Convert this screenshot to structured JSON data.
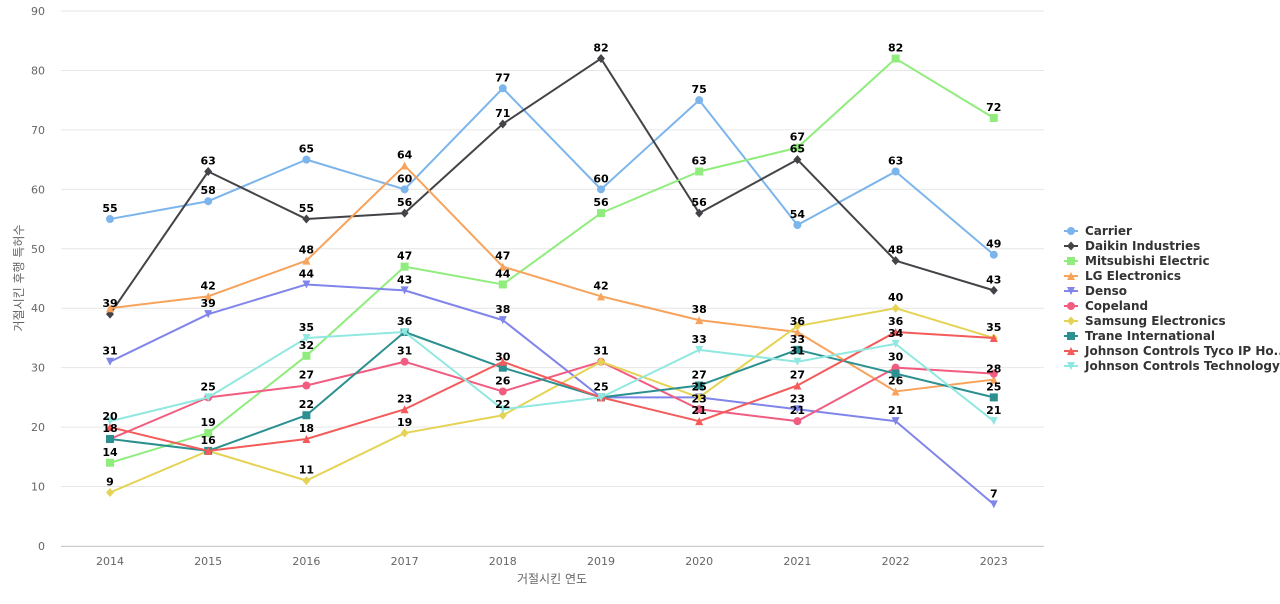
{
  "chart_data": {
    "type": "line",
    "title": "",
    "xlabel": "거절시킨 연도",
    "ylabel": "거절시킨 후행 특허수",
    "categories": [
      "2014",
      "2015",
      "2016",
      "2017",
      "2018",
      "2019",
      "2020",
      "2021",
      "2022",
      "2023"
    ],
    "ylim": [
      0,
      90
    ],
    "yticks": [
      0,
      10,
      20,
      30,
      40,
      50,
      60,
      70,
      80,
      90
    ],
    "grid": true,
    "legend_position": "right",
    "series": [
      {
        "name": "Carrier",
        "color": "#7cb5ec",
        "marker": "circle",
        "values": [
          55,
          58,
          65,
          60,
          77,
          60,
          75,
          54,
          63,
          49
        ]
      },
      {
        "name": "Daikin Industries",
        "color": "#434348",
        "marker": "diamond",
        "values": [
          39,
          63,
          55,
          56,
          71,
          82,
          56,
          65,
          48,
          43
        ]
      },
      {
        "name": "Mitsubishi Electric",
        "color": "#90ed7d",
        "marker": "square",
        "values": [
          14,
          19,
          32,
          47,
          44,
          56,
          63,
          67,
          82,
          72
        ]
      },
      {
        "name": "LG Electronics",
        "color": "#f7a35c",
        "marker": "triangle",
        "values": [
          40,
          42,
          48,
          64,
          47,
          42,
          38,
          36,
          26,
          28
        ]
      },
      {
        "name": "Denso",
        "color": "#8085e9",
        "marker": "triangle-down",
        "values": [
          31,
          39,
          44,
          43,
          38,
          25,
          25,
          23,
          21,
          7
        ]
      },
      {
        "name": "Copeland",
        "color": "#f15c80",
        "marker": "circle",
        "values": [
          18,
          25,
          27,
          31,
          26,
          31,
          23,
          21,
          30,
          29
        ]
      },
      {
        "name": "Samsung Electronics",
        "color": "#e4d354",
        "marker": "diamond",
        "values": [
          9,
          16,
          11,
          19,
          22,
          31,
          25,
          37,
          40,
          35
        ]
      },
      {
        "name": "Trane International",
        "color": "#2b908f",
        "marker": "square",
        "values": [
          18,
          16,
          22,
          36,
          30,
          25,
          27,
          33,
          29,
          25
        ]
      },
      {
        "name": "Johnson Controls Tyco IP Ho...",
        "color": "#f45b5b",
        "marker": "triangle",
        "values": [
          20,
          16,
          18,
          23,
          31,
          25,
          21,
          27,
          36,
          35
        ]
      },
      {
        "name": "Johnson Controls Technology",
        "color": "#91e8e1",
        "marker": "triangle-down",
        "values": [
          21,
          25,
          35,
          36,
          23,
          25,
          33,
          31,
          34,
          21
        ]
      }
    ],
    "data_labels": [
      {
        "text": "55",
        "x": "2014",
        "y": 55
      },
      {
        "text": "39",
        "x": "2014",
        "y": 39
      },
      {
        "text": "31",
        "x": "2014",
        "y": 31
      },
      {
        "text": "20",
        "x": "2014",
        "y": 20
      },
      {
        "text": "18",
        "x": "2014",
        "y": 18
      },
      {
        "text": "14",
        "x": "2014",
        "y": 14
      },
      {
        "text": "9",
        "x": "2014",
        "y": 9
      },
      {
        "text": "63",
        "x": "2015",
        "y": 63
      },
      {
        "text": "58",
        "x": "2015",
        "y": 58
      },
      {
        "text": "42",
        "x": "2015",
        "y": 42
      },
      {
        "text": "39",
        "x": "2015",
        "y": 39
      },
      {
        "text": "25",
        "x": "2015",
        "y": 25
      },
      {
        "text": "19",
        "x": "2015",
        "y": 19
      },
      {
        "text": "16",
        "x": "2015",
        "y": 16
      },
      {
        "text": "65",
        "x": "2016",
        "y": 65
      },
      {
        "text": "55",
        "x": "2016",
        "y": 55
      },
      {
        "text": "48",
        "x": "2016",
        "y": 48
      },
      {
        "text": "44",
        "x": "2016",
        "y": 44
      },
      {
        "text": "35",
        "x": "2016",
        "y": 35
      },
      {
        "text": "32",
        "x": "2016",
        "y": 32
      },
      {
        "text": "27",
        "x": "2016",
        "y": 27
      },
      {
        "text": "22",
        "x": "2016",
        "y": 22
      },
      {
        "text": "18",
        "x": "2016",
        "y": 18
      },
      {
        "text": "11",
        "x": "2016",
        "y": 11
      },
      {
        "text": "64",
        "x": "2017",
        "y": 64
      },
      {
        "text": "60",
        "x": "2017",
        "y": 60
      },
      {
        "text": "56",
        "x": "2017",
        "y": 56
      },
      {
        "text": "47",
        "x": "2017",
        "y": 47
      },
      {
        "text": "43",
        "x": "2017",
        "y": 43
      },
      {
        "text": "36",
        "x": "2017",
        "y": 36
      },
      {
        "text": "31",
        "x": "2017",
        "y": 31
      },
      {
        "text": "23",
        "x": "2017",
        "y": 23
      },
      {
        "text": "19",
        "x": "2017",
        "y": 19
      },
      {
        "text": "77",
        "x": "2018",
        "y": 77
      },
      {
        "text": "71",
        "x": "2018",
        "y": 71
      },
      {
        "text": "47",
        "x": "2018",
        "y": 47
      },
      {
        "text": "44",
        "x": "2018",
        "y": 44
      },
      {
        "text": "38",
        "x": "2018",
        "y": 38
      },
      {
        "text": "30",
        "x": "2018",
        "y": 30
      },
      {
        "text": "26",
        "x": "2018",
        "y": 26
      },
      {
        "text": "22",
        "x": "2018",
        "y": 22
      },
      {
        "text": "82",
        "x": "2019",
        "y": 82
      },
      {
        "text": "60",
        "x": "2019",
        "y": 60
      },
      {
        "text": "56",
        "x": "2019",
        "y": 56
      },
      {
        "text": "42",
        "x": "2019",
        "y": 42
      },
      {
        "text": "31",
        "x": "2019",
        "y": 31
      },
      {
        "text": "25",
        "x": "2019",
        "y": 25
      },
      {
        "text": "75",
        "x": "2020",
        "y": 75
      },
      {
        "text": "63",
        "x": "2020",
        "y": 63
      },
      {
        "text": "56",
        "x": "2020",
        "y": 56
      },
      {
        "text": "38",
        "x": "2020",
        "y": 38
      },
      {
        "text": "33",
        "x": "2020",
        "y": 33
      },
      {
        "text": "27",
        "x": "2020",
        "y": 27
      },
      {
        "text": "25",
        "x": "2020",
        "y": 25
      },
      {
        "text": "23",
        "x": "2020",
        "y": 23
      },
      {
        "text": "21",
        "x": "2020",
        "y": 21
      },
      {
        "text": "67",
        "x": "2021",
        "y": 67
      },
      {
        "text": "65",
        "x": "2021",
        "y": 65
      },
      {
        "text": "54",
        "x": "2021",
        "y": 54
      },
      {
        "text": "36",
        "x": "2021",
        "y": 36
      },
      {
        "text": "33",
        "x": "2021",
        "y": 33
      },
      {
        "text": "31",
        "x": "2021",
        "y": 31
      },
      {
        "text": "27",
        "x": "2021",
        "y": 27
      },
      {
        "text": "23",
        "x": "2021",
        "y": 23
      },
      {
        "text": "21",
        "x": "2021",
        "y": 21
      },
      {
        "text": "82",
        "x": "2022",
        "y": 82
      },
      {
        "text": "63",
        "x": "2022",
        "y": 63
      },
      {
        "text": "48",
        "x": "2022",
        "y": 48
      },
      {
        "text": "40",
        "x": "2022",
        "y": 40
      },
      {
        "text": "36",
        "x": "2022",
        "y": 36
      },
      {
        "text": "34",
        "x": "2022",
        "y": 34
      },
      {
        "text": "30",
        "x": "2022",
        "y": 30
      },
      {
        "text": "26",
        "x": "2022",
        "y": 26
      },
      {
        "text": "21",
        "x": "2022",
        "y": 21
      },
      {
        "text": "72",
        "x": "2023",
        "y": 72
      },
      {
        "text": "49",
        "x": "2023",
        "y": 49
      },
      {
        "text": "43",
        "x": "2023",
        "y": 43
      },
      {
        "text": "35",
        "x": "2023",
        "y": 35
      },
      {
        "text": "28",
        "x": "2023",
        "y": 28
      },
      {
        "text": "25",
        "x": "2023",
        "y": 25
      },
      {
        "text": "21",
        "x": "2023",
        "y": 21
      },
      {
        "text": "7",
        "x": "2023",
        "y": 7
      }
    ]
  }
}
